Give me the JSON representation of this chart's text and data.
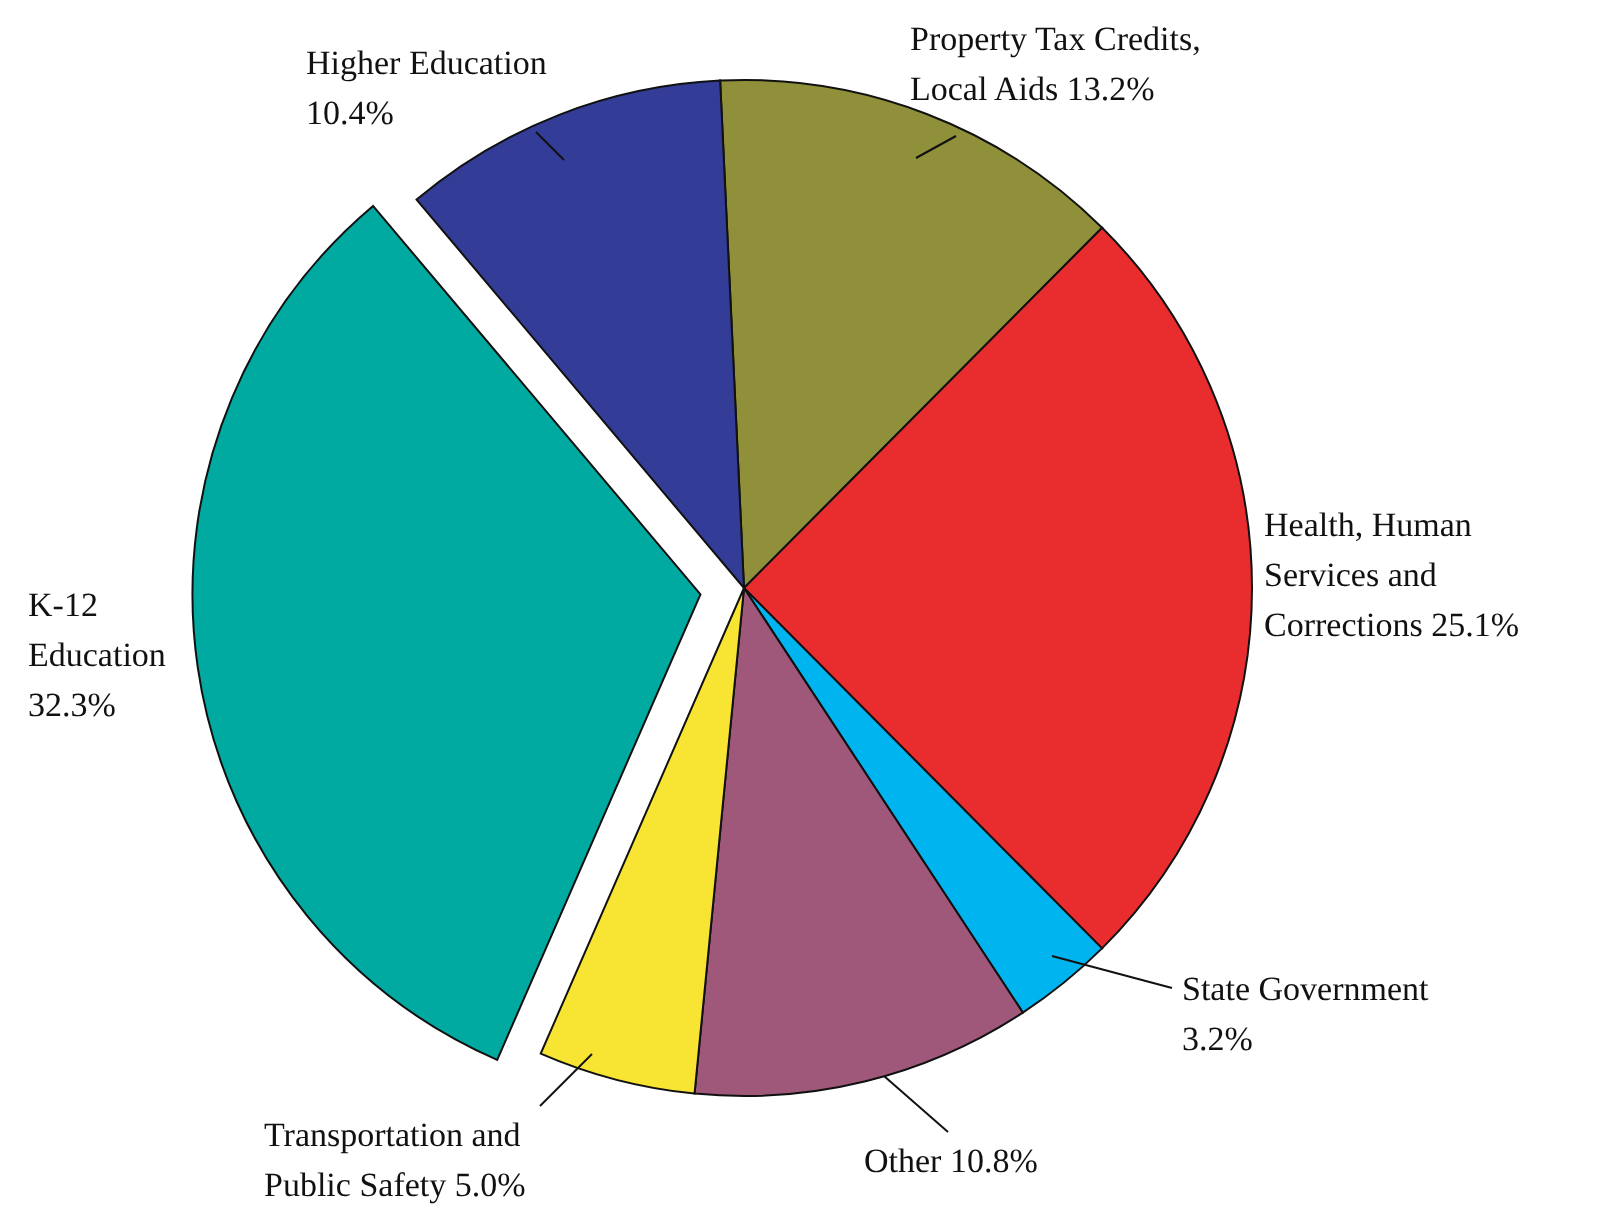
{
  "chart_data": {
    "type": "pie",
    "categories": [
      "Property Tax Credits, Local Aids",
      "Health, Human Services and Corrections",
      "State Government",
      "Other",
      "Transportation and Public Safety",
      "K-12 Education",
      "Higher Education"
    ],
    "values": [
      13.2,
      25.1,
      3.2,
      10.8,
      5.0,
      32.3,
      10.4
    ],
    "colors": [
      "#8f9039",
      "#e92d2f",
      "#00b5ef",
      "#a0587a",
      "#f8e533",
      "#00aaa0",
      "#333c96"
    ],
    "value_labels": [
      "13.2%",
      "25.1%",
      "3.2%",
      "10.8%",
      "5.0%",
      "32.3%",
      "10.4%"
    ]
  }
}
